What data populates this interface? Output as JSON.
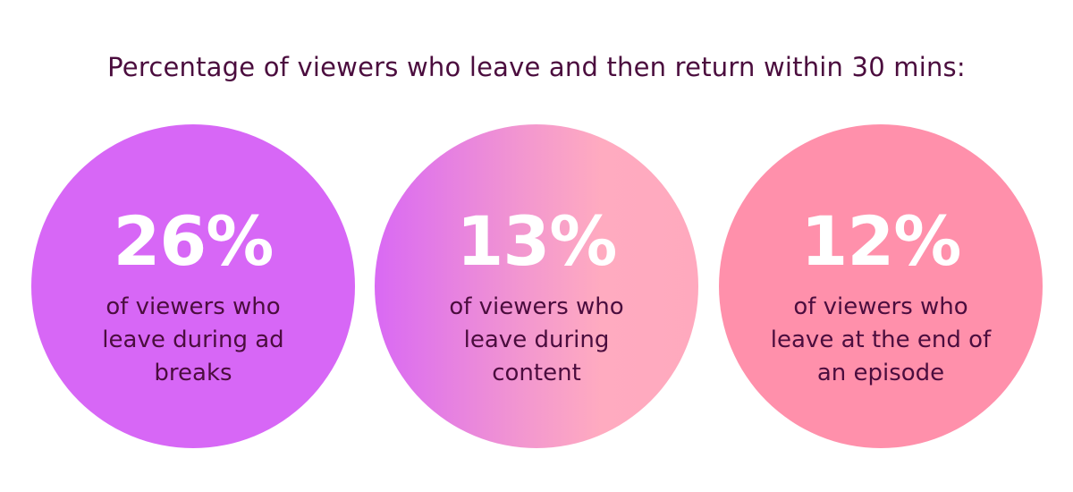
{
  "header": {
    "title": "Percentage of viewers who leave and then return within 30 mins:"
  },
  "items": [
    {
      "value": "26%",
      "label": "of viewers who leave during ad breaks"
    },
    {
      "value": "13%",
      "label": "of viewers who leave during content"
    },
    {
      "value": "12%",
      "label": "of viewers who leave at the end of an episode"
    }
  ]
}
